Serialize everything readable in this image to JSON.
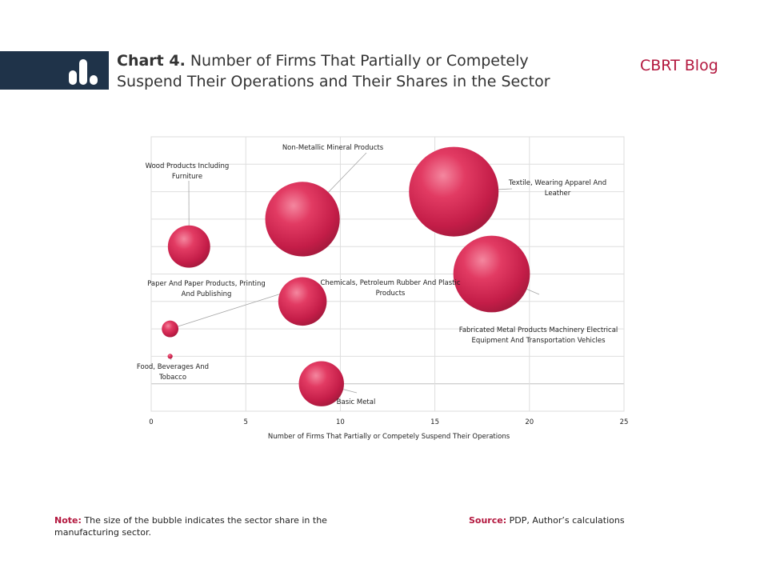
{
  "header": {
    "title_bold": "Chart 4.",
    "title_rest": " Number of Firms That Partially or Competely Suspend Their Operations and Their Shares in the Sector",
    "brand": "CBRT Blog",
    "icon": "bar-chart-icon"
  },
  "colors": {
    "bubble": "#d42a55",
    "header_bar": "#1f3349",
    "accent": "#b3173e"
  },
  "chart_data": {
    "type": "scatter",
    "subtype": "bubble",
    "xlabel": "Number of Firms That Partially  or Competely  Suspend Their Operations",
    "ylabel": "",
    "xlim": [
      0,
      25
    ],
    "ylim": [
      0,
      10
    ],
    "x_ticks": [
      "0",
      "5",
      "10",
      "15",
      "20",
      "25"
    ],
    "grid": true,
    "points": [
      {
        "label": "Non-Metallic  Mineral Products",
        "x": 8,
        "y": 7,
        "size": 9
      },
      {
        "label": "Textile,  Wearing Apparel And Leather",
        "x": 16,
        "y": 8,
        "size": 13
      },
      {
        "label": "Wood  Products  Including Furniture",
        "x": 2,
        "y": 6,
        "size": 2.9
      },
      {
        "label": "Fabricated Metal Products Machinery Electrical Equipment And Transportation Vehicles",
        "x": 18,
        "y": 5,
        "size": 9.5
      },
      {
        "label": "Chemicals,  Petroleum  Rubber And Plastic Products",
        "x": 8,
        "y": 4,
        "size": 3.8
      },
      {
        "label": "Paper And Paper Products,  Printing And Publishing",
        "x": 1,
        "y": 3,
        "size": 0.45
      },
      {
        "label": "Food,  Beverages And Tobacco",
        "x": 1,
        "y": 2,
        "size": 0.04
      },
      {
        "label": "Basic Metal",
        "x": 9,
        "y": 1,
        "size": 3.3
      }
    ]
  },
  "footer": {
    "note_label": "Note:",
    "note_text": " The size of the bubble indicates the sector share in the manufacturing sector.",
    "source_label": "Source:",
    "source_text": " PDP, Author’s calculations"
  }
}
